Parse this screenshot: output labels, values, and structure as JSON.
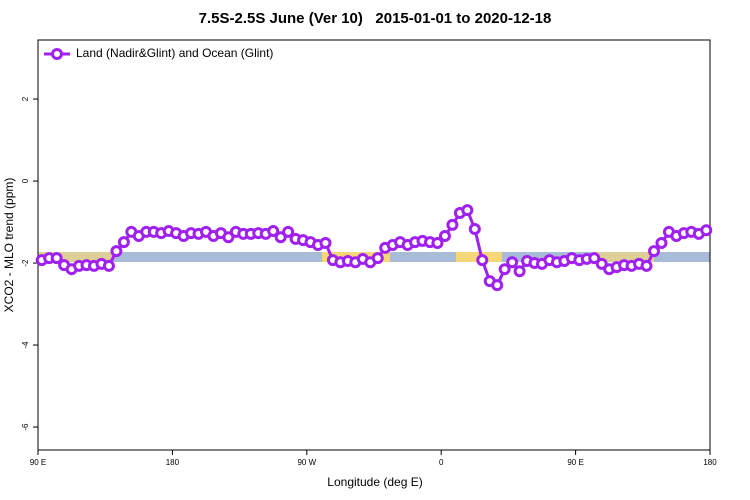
{
  "chart_data": {
    "type": "line",
    "title": "7.5S-2.5S June (Ver 10)   2015-01-01 to 2020-12-18",
    "x_label": "Longitude (deg E)",
    "y_label": "XCO2 - MLO trend (ppm)",
    "xlim": [
      90,
      540
    ],
    "ylim": [
      -6.56,
      3.44
    ],
    "xticks": [
      {
        "value": 90,
        "label": "90 E"
      },
      180,
      {
        "value": 270,
        "label": "90 W"
      },
      {
        "value": 360,
        "label": "0"
      },
      {
        "value": 450,
        "label": "90 E"
      },
      {
        "value": 540,
        "label": "180"
      }
    ],
    "yticks": [
      -6,
      -4,
      -2,
      0,
      2
    ],
    "legend": "top-left",
    "x": [
      92.5,
      97.5,
      102.5,
      107.5,
      112.5,
      117.5,
      122.5,
      127.5,
      132.5,
      137.5,
      142.5,
      147.5,
      152.5,
      157.5,
      162.5,
      167.5,
      172.5,
      177.5,
      182.5,
      187.5,
      192.5,
      197.5,
      202.5,
      207.5,
      212.5,
      217.5,
      222.5,
      227.5,
      232.5,
      237.5,
      242.5,
      247.5,
      252.5,
      257.5,
      262.5,
      267.5,
      272.5,
      277.5,
      282.5,
      287.5,
      292.5,
      297.5,
      302.5,
      307.5,
      312.5,
      317.5,
      322.5,
      327.5,
      332.5,
      337.5,
      342.5,
      347.5,
      352.5,
      357.5,
      362.5,
      367.5,
      372.5,
      377.5,
      382.5,
      387.5,
      392.5,
      397.5,
      402.5,
      407.5,
      412.5,
      417.5,
      422.5,
      427.5,
      432.5,
      437.5,
      442.5,
      447.5,
      452.5,
      457.5,
      462.5,
      467.5,
      472.5,
      477.5,
      482.5,
      487.5,
      492.5,
      497.5,
      502.5,
      507.5,
      512.5,
      517.5,
      522.5,
      527.5,
      532.5,
      537.5
    ],
    "series": [
      {
        "name": "Land (Nadir&Glint) and Ocean (Glint)",
        "color": "#a020f0",
        "values": [
          -1.93,
          -1.88,
          -1.88,
          -2.05,
          -2.15,
          -2.07,
          -2.05,
          -2.07,
          -2.02,
          -2.07,
          -1.71,
          -1.49,
          -1.24,
          -1.34,
          -1.24,
          -1.24,
          -1.27,
          -1.22,
          -1.27,
          -1.34,
          -1.27,
          -1.29,
          -1.24,
          -1.34,
          -1.27,
          -1.37,
          -1.24,
          -1.29,
          -1.29,
          -1.27,
          -1.29,
          -1.22,
          -1.37,
          -1.24,
          -1.41,
          -1.44,
          -1.49,
          -1.56,
          -1.51,
          -1.93,
          -1.98,
          -1.95,
          -1.98,
          -1.9,
          -1.98,
          -1.88,
          -1.63,
          -1.56,
          -1.49,
          -1.56,
          -1.49,
          -1.46,
          -1.49,
          -1.51,
          -1.34,
          -1.07,
          -0.78,
          -0.71,
          -1.17,
          -1.93,
          -2.44,
          -2.54,
          -2.15,
          -1.98,
          -2.2,
          -1.95,
          -2.0,
          -2.02,
          -1.93,
          -1.98,
          -1.95,
          -1.88,
          -1.93,
          -1.9,
          -1.88,
          -2.02,
          -2.15,
          -2.1,
          -2.05,
          -2.07,
          -2.02,
          -2.07,
          -1.71,
          -1.51,
          -1.24,
          -1.34,
          -1.27,
          -1.24,
          -1.29,
          -1.2
        ]
      }
    ]
  }
}
